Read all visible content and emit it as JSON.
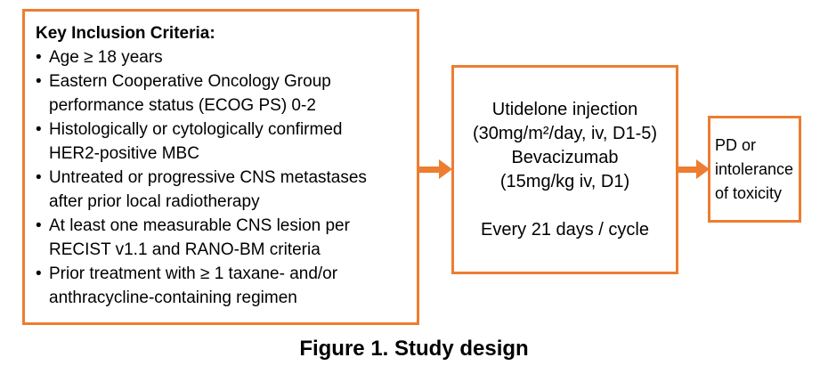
{
  "colors": {
    "accent": "#ED7D31",
    "text": "#000000",
    "background": "#FFFFFF"
  },
  "inclusion_box": {
    "title": "Key Inclusion Criteria:",
    "bullet": "•",
    "items": [
      "Age ≥ 18 years",
      "Eastern Cooperative Oncology Group\nperformance status (ECOG PS) 0-2",
      "Histologically or cytologically confirmed\nHER2-positive MBC",
      "Untreated or progressive CNS metastases\nafter prior local radiotherapy",
      "At least one measurable CNS lesion per\nRECIST v1.1 and RANO-BM criteria",
      "Prior treatment with ≥ 1 taxane- and/or\nanthracycline-containing regimen"
    ]
  },
  "treatment_box": {
    "lines": [
      "Utidelone injection",
      "(30mg/m²/day, iv, D1-5)",
      "Bevacizumab",
      "(15mg/kg iv, D1)",
      "",
      "Every 21 days / cycle"
    ]
  },
  "endpoint_box": {
    "lines": [
      "PD or",
      "intolerance",
      "of toxicity"
    ]
  },
  "figure": {
    "caption": "Figure 1. Study design"
  }
}
